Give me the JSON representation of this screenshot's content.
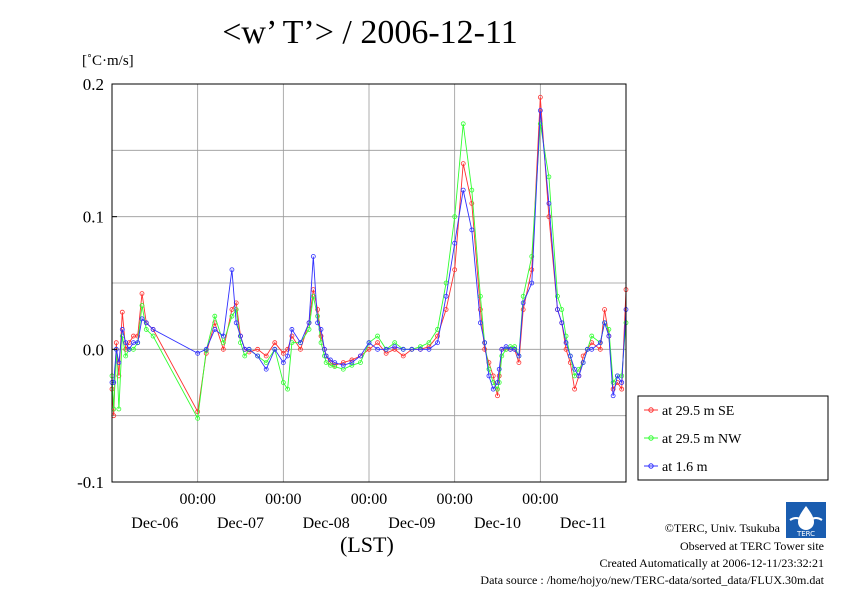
{
  "title": "<w’ T’> / 2006-12-11",
  "unit_label": "[˚C·m/s]",
  "credits": {
    "copyright": "©TERC, Univ. Tsukuba",
    "observed": "Observed at TERC Tower site",
    "created": "Created Automatically at 2006-12-11/23:32:21",
    "source": "Data source : /home/hojyo/new/TERC-data/sorted_data/FLUX.30m.dat"
  },
  "logo_text": "TERC",
  "chart_data": {
    "type": "line",
    "title": "<w’ T’> / 2006-12-11",
    "ylabel": "[˚C·m/s]",
    "xlabel": "(LST)",
    "ylim": [
      -0.1,
      0.2
    ],
    "xlim": [
      0,
      6
    ],
    "yticks": [
      -0.1,
      0.0,
      0.1,
      0.2
    ],
    "ytick_labels": [
      "-0.1",
      "0.0",
      "0.1",
      "0.2"
    ],
    "xticks": [
      1,
      2,
      3,
      4,
      5
    ],
    "xtick_labels": [
      "00:00",
      "00:00",
      "00:00",
      "00:00",
      "00:00"
    ],
    "date_labels": [
      "Dec-06",
      "Dec-07",
      "Dec-08",
      "Dec-09",
      "Dec-10",
      "Dec-11"
    ],
    "grid": true,
    "legend_position": "right",
    "series": [
      {
        "name": "at 29.5 m SE",
        "color": "#ff3030",
        "x": [
          0.0,
          0.02,
          0.05,
          0.08,
          0.12,
          0.16,
          0.2,
          0.25,
          0.3,
          0.35,
          0.4,
          0.48,
          1.0,
          1.1,
          1.2,
          1.3,
          1.4,
          1.45,
          1.5,
          1.55,
          1.6,
          1.7,
          1.8,
          1.9,
          2.0,
          2.05,
          2.1,
          2.2,
          2.3,
          2.35,
          2.4,
          2.44,
          2.48,
          2.5,
          2.55,
          2.6,
          2.7,
          2.8,
          2.9,
          3.0,
          3.1,
          3.2,
          3.3,
          3.4,
          3.5,
          3.6,
          3.7,
          3.8,
          3.9,
          4.0,
          4.1,
          4.2,
          4.3,
          4.35,
          4.4,
          4.45,
          4.5,
          4.52,
          4.55,
          4.6,
          4.65,
          4.7,
          4.75,
          4.8,
          4.9,
          5.0,
          5.1,
          5.2,
          5.25,
          5.3,
          5.35,
          5.4,
          5.45,
          5.5,
          5.55,
          5.6,
          5.7,
          5.75,
          5.8,
          5.85,
          5.9,
          5.95,
          6.0
        ],
        "values": [
          -0.03,
          -0.05,
          0.005,
          -0.02,
          0.028,
          0.0,
          0.005,
          0.01,
          0.01,
          0.042,
          0.02,
          0.015,
          -0.047,
          -0.003,
          0.02,
          0.0,
          0.03,
          0.035,
          0.01,
          0.0,
          -0.002,
          0.0,
          -0.005,
          0.005,
          -0.003,
          0.0,
          0.01,
          0.0,
          0.02,
          0.045,
          0.03,
          0.01,
          0.0,
          -0.005,
          -0.01,
          -0.012,
          -0.01,
          -0.008,
          -0.005,
          0.0,
          0.005,
          -0.003,
          0.0,
          -0.005,
          0.0,
          0.0,
          0.002,
          0.01,
          0.03,
          0.06,
          0.14,
          0.11,
          0.03,
          0.0,
          -0.01,
          -0.02,
          -0.035,
          -0.02,
          0.0,
          0.0,
          0.0,
          0.0,
          -0.01,
          0.03,
          0.06,
          0.19,
          0.1,
          0.03,
          0.02,
          0.0,
          -0.01,
          -0.03,
          -0.02,
          -0.005,
          0.0,
          0.005,
          0.0,
          0.03,
          0.01,
          -0.03,
          -0.025,
          -0.03,
          0.045
        ]
      },
      {
        "name": "at 29.5 m NW",
        "color": "#30ff30",
        "x": [
          0.0,
          0.02,
          0.05,
          0.08,
          0.12,
          0.16,
          0.2,
          0.25,
          0.3,
          0.35,
          0.4,
          0.48,
          1.0,
          1.1,
          1.2,
          1.3,
          1.4,
          1.45,
          1.5,
          1.55,
          1.6,
          1.7,
          1.8,
          1.9,
          2.0,
          2.05,
          2.1,
          2.2,
          2.3,
          2.35,
          2.4,
          2.44,
          2.48,
          2.5,
          2.55,
          2.6,
          2.7,
          2.8,
          2.9,
          3.0,
          3.1,
          3.2,
          3.3,
          3.4,
          3.5,
          3.6,
          3.7,
          3.8,
          3.9,
          4.0,
          4.1,
          4.2,
          4.3,
          4.35,
          4.4,
          4.45,
          4.5,
          4.52,
          4.55,
          4.6,
          4.65,
          4.7,
          4.75,
          4.8,
          4.9,
          5.0,
          5.1,
          5.2,
          5.25,
          5.3,
          5.35,
          5.4,
          5.45,
          5.5,
          5.55,
          5.6,
          5.7,
          5.75,
          5.8,
          5.85,
          5.9,
          5.95,
          6.0
        ],
        "values": [
          -0.02,
          -0.045,
          0.0,
          -0.045,
          0.01,
          -0.005,
          0.0,
          0.0,
          0.005,
          0.033,
          0.015,
          0.01,
          -0.052,
          -0.001,
          0.025,
          0.005,
          0.025,
          0.03,
          0.005,
          -0.005,
          0.0,
          -0.005,
          -0.01,
          0.0,
          -0.025,
          -0.03,
          0.005,
          0.005,
          0.015,
          0.04,
          0.025,
          0.005,
          -0.005,
          -0.01,
          -0.012,
          -0.013,
          -0.015,
          -0.012,
          -0.01,
          0.005,
          0.01,
          0.0,
          0.005,
          0.0,
          0.0,
          0.002,
          0.005,
          0.015,
          0.05,
          0.1,
          0.17,
          0.12,
          0.04,
          0.005,
          -0.015,
          -0.025,
          -0.03,
          -0.025,
          -0.005,
          0.0,
          0.002,
          0.002,
          -0.005,
          0.04,
          0.07,
          0.17,
          0.13,
          0.04,
          0.03,
          0.01,
          -0.005,
          -0.02,
          -0.015,
          -0.01,
          0.0,
          0.01,
          0.005,
          0.02,
          0.015,
          -0.025,
          -0.02,
          -0.02,
          0.02
        ]
      },
      {
        "name": "at 1.6 m",
        "color": "#3030ff",
        "x": [
          0.0,
          0.02,
          0.05,
          0.08,
          0.12,
          0.16,
          0.2,
          0.25,
          0.3,
          0.35,
          0.4,
          0.48,
          1.0,
          1.1,
          1.2,
          1.3,
          1.4,
          1.45,
          1.5,
          1.55,
          1.6,
          1.7,
          1.8,
          1.9,
          2.0,
          2.05,
          2.1,
          2.2,
          2.3,
          2.35,
          2.4,
          2.44,
          2.48,
          2.5,
          2.55,
          2.6,
          2.7,
          2.8,
          2.9,
          3.0,
          3.1,
          3.2,
          3.3,
          3.4,
          3.5,
          3.6,
          3.7,
          3.8,
          3.9,
          4.0,
          4.1,
          4.2,
          4.3,
          4.35,
          4.4,
          4.45,
          4.5,
          4.52,
          4.55,
          4.6,
          4.65,
          4.7,
          4.75,
          4.8,
          4.9,
          5.0,
          5.1,
          5.2,
          5.25,
          5.3,
          5.35,
          5.4,
          5.45,
          5.5,
          5.55,
          5.6,
          5.7,
          5.75,
          5.8,
          5.85,
          5.9,
          5.95,
          6.0
        ],
        "values": [
          -0.025,
          -0.025,
          0.0,
          -0.01,
          0.015,
          0.005,
          0.0,
          0.005,
          0.005,
          0.023,
          0.02,
          0.015,
          -0.003,
          0.0,
          0.015,
          0.01,
          0.06,
          0.02,
          0.01,
          0.0,
          0.0,
          -0.005,
          -0.015,
          0.0,
          -0.01,
          -0.005,
          0.015,
          0.005,
          0.02,
          0.07,
          0.02,
          0.015,
          0.0,
          -0.005,
          -0.008,
          -0.01,
          -0.012,
          -0.01,
          -0.005,
          0.005,
          0.0,
          0.0,
          0.002,
          0.0,
          0.0,
          0.0,
          0.0,
          0.005,
          0.04,
          0.08,
          0.12,
          0.09,
          0.02,
          0.005,
          -0.02,
          -0.03,
          -0.025,
          -0.015,
          0.0,
          0.002,
          0.0,
          0.0,
          -0.005,
          0.035,
          0.05,
          0.18,
          0.11,
          0.03,
          0.02,
          0.005,
          -0.005,
          -0.015,
          -0.02,
          -0.01,
          0.0,
          0.0,
          0.005,
          0.02,
          0.01,
          -0.035,
          -0.02,
          -0.025,
          0.03
        ]
      }
    ]
  }
}
